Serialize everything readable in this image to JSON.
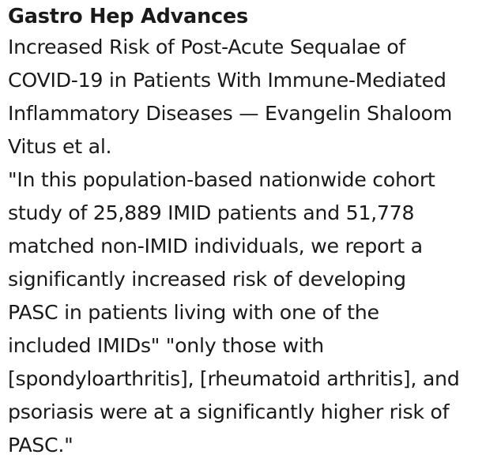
{
  "journal": "Gastro Hep Advances",
  "title_lines": [
    "Increased Risk of Post-Acute Sequalae of",
    "COVID-19 in Patients With Immune-Mediated",
    "Inflammatory Diseases — Evangelin Shaloom",
    "Vitus et al."
  ],
  "quote_lines": [
    "\"In this population-based nationwide cohort",
    "study of 25,889 IMID patients and 51,778",
    "matched non-IMID individuals, we report a",
    "significantly increased risk of developing",
    "PASC in patients living with one of the",
    "included IMIDs\" \"only those with",
    "[spondyloarthritis], [rheumatoid arthritis], and",
    "psoriasis were at a significantly higher risk of",
    "PASC.\""
  ]
}
